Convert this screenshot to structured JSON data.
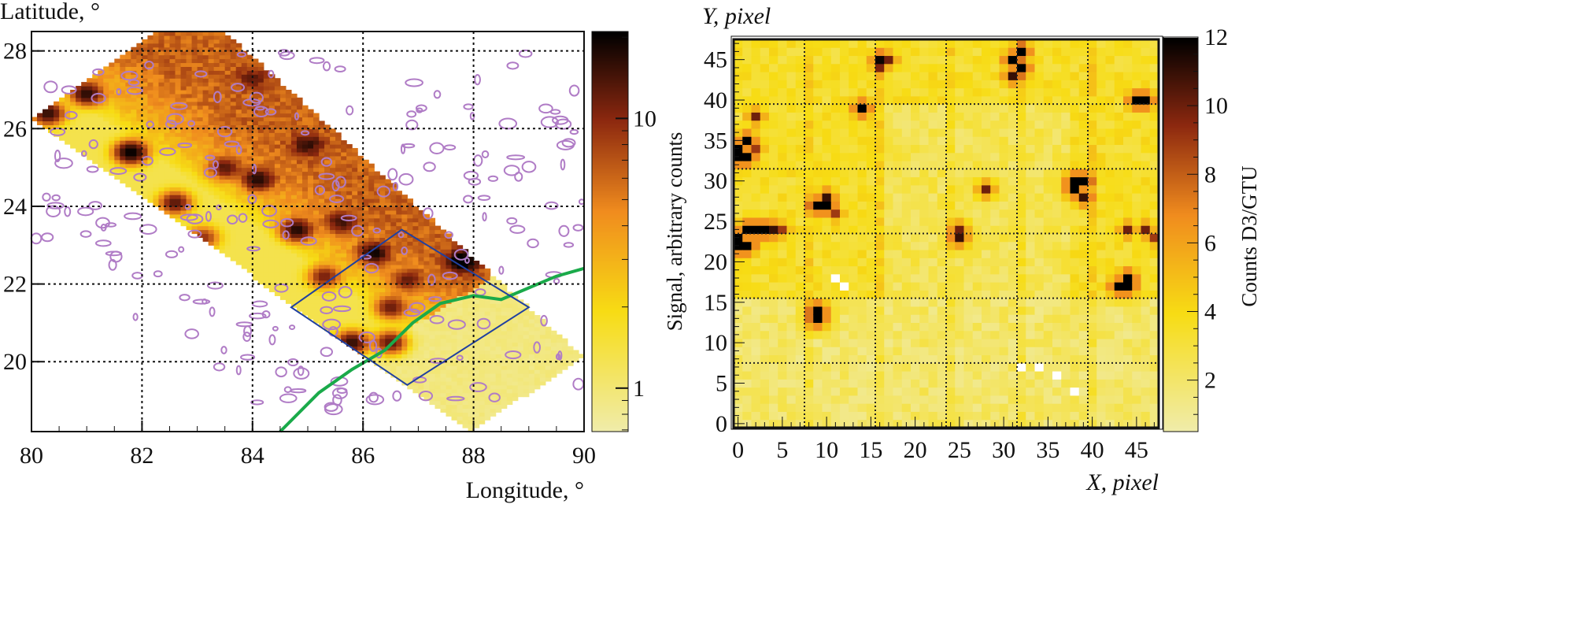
{
  "chart_data": [
    {
      "type": "heatmap",
      "xlabel": "Longitude, °",
      "ylabel": "Latitude, °",
      "xlim": [
        80,
        90
      ],
      "ylim": [
        18.2,
        28.5
      ],
      "xticks": [
        "80",
        "82",
        "84",
        "86",
        "88",
        "90"
      ],
      "yticks": [
        "20",
        "22",
        "24",
        "26",
        "28"
      ],
      "colorbar": {
        "label": "Signal, arbitrary counts",
        "scale": "log",
        "range": [
          0.69,
          21
        ],
        "ticks": [
          "1",
          "10"
        ]
      },
      "grid": true,
      "swath": [
        [
          80,
          26.3
        ],
        [
          82.2,
          28.5
        ],
        [
          83.5,
          28.5
        ],
        [
          90,
          20.1
        ],
        [
          87.9,
          18.2
        ]
      ],
      "hotspots": [
        [
          80.3,
          26.4,
          15
        ],
        [
          81,
          26.9,
          15
        ],
        [
          81.8,
          25.4,
          20
        ],
        [
          82.6,
          24.1,
          12
        ],
        [
          83.5,
          25,
          10
        ],
        [
          84.1,
          24.7,
          14
        ],
        [
          85,
          25.6,
          10
        ],
        [
          84.8,
          23.4,
          15
        ],
        [
          85.6,
          23.6,
          10
        ],
        [
          86.2,
          22.8,
          15
        ],
        [
          85.3,
          22.2,
          10
        ],
        [
          86.5,
          21.4,
          10
        ],
        [
          85.8,
          20.5,
          15
        ],
        [
          86.5,
          20.5,
          12
        ],
        [
          87.8,
          22.6,
          20
        ],
        [
          86.8,
          22.1,
          8
        ],
        [
          83.1,
          23.2,
          8
        ],
        [
          84,
          27.3,
          6
        ]
      ],
      "field_of_view": [
        [
          84.7,
          21.4
        ],
        [
          86.7,
          23.4
        ],
        [
          89,
          21.4
        ],
        [
          86.8,
          19.4
        ]
      ],
      "coastline": [
        [
          84.5,
          18.2
        ],
        [
          85.2,
          19.2
        ],
        [
          85.8,
          19.8
        ],
        [
          86.4,
          20.3
        ],
        [
          86.9,
          21.0
        ],
        [
          87.4,
          21.5
        ],
        [
          88.0,
          21.7
        ],
        [
          88.5,
          21.6
        ],
        [
          89.0,
          21.9
        ],
        [
          89.5,
          22.2
        ],
        [
          90,
          22.4
        ]
      ],
      "colors": {
        "coastline": "#1aaa4a",
        "contours": "#b07cc6",
        "field_of_view": "#2040a0"
      }
    },
    {
      "type": "heatmap",
      "xlabel": "X, pixel",
      "ylabel": "Y, pixel",
      "xlim": [
        -0.5,
        47.5
      ],
      "ylim": [
        -0.5,
        47.5
      ],
      "xticks": [
        "0",
        "5",
        "10",
        "15",
        "20",
        "25",
        "30",
        "35",
        "40",
        "45"
      ],
      "yticks": [
        "0",
        "5",
        "10",
        "15",
        "20",
        "25",
        "30",
        "35",
        "40",
        "45"
      ],
      "colorbar": {
        "label": "Counts D3/GTU",
        "scale": "linear",
        "range": [
          0.5,
          12
        ],
        "ticks": [
          "2",
          "4",
          "6",
          "8",
          "10",
          "12"
        ]
      },
      "grid_lines_at": [
        8,
        16,
        24,
        32,
        40
      ],
      "background": {
        "upper_half": 3.5,
        "lower_half": 2.0
      },
      "hotspots": [
        [
          0,
          34,
          12
        ],
        [
          1,
          35,
          12
        ],
        [
          0,
          33,
          12
        ],
        [
          1,
          33,
          12
        ],
        [
          2,
          34,
          9
        ],
        [
          2,
          38,
          10
        ],
        [
          0,
          23,
          12
        ],
        [
          1,
          24,
          12
        ],
        [
          2,
          24,
          12
        ],
        [
          3,
          24,
          12
        ],
        [
          4,
          24,
          11
        ],
        [
          1,
          22,
          12
        ],
        [
          0,
          22,
          12
        ],
        [
          5,
          24,
          9
        ],
        [
          9,
          27,
          12
        ],
        [
          10,
          27,
          12
        ],
        [
          10,
          28,
          11
        ],
        [
          11,
          26,
          9
        ],
        [
          9,
          14,
          12
        ],
        [
          9,
          13,
          12
        ],
        [
          14,
          39,
          12
        ],
        [
          16,
          45,
          11
        ],
        [
          17,
          45,
          10
        ],
        [
          16,
          44,
          9
        ],
        [
          31,
          45,
          12
        ],
        [
          32,
          46,
          12
        ],
        [
          31,
          43,
          11
        ],
        [
          32,
          44,
          12
        ],
        [
          38,
          29,
          12
        ],
        [
          39,
          30,
          12
        ],
        [
          38,
          30,
          12
        ],
        [
          39,
          28,
          11
        ],
        [
          43,
          17,
          12
        ],
        [
          44,
          17,
          12
        ],
        [
          44,
          18,
          12
        ],
        [
          45,
          40,
          12
        ],
        [
          46,
          40,
          12
        ],
        [
          25,
          23,
          11
        ],
        [
          25,
          24,
          10
        ],
        [
          28,
          29,
          10
        ],
        [
          44,
          24,
          10
        ],
        [
          46,
          24,
          10
        ],
        [
          47,
          23,
          9
        ]
      ],
      "zero_pixels": [
        [
          11,
          18
        ],
        [
          12,
          17
        ],
        [
          32,
          7
        ],
        [
          34,
          7
        ],
        [
          36,
          6
        ],
        [
          38,
          4
        ]
      ]
    }
  ]
}
